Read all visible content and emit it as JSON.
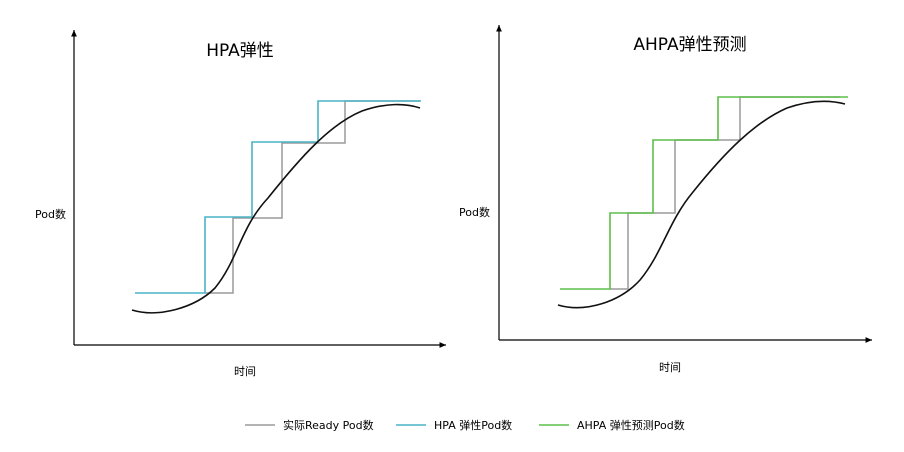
{
  "left_panel": {
    "title": "HPA弹性",
    "ylabel": "Pod数",
    "xlabel": "时间",
    "series_color": "#4ab4c8"
  },
  "right_panel": {
    "title": "AHPA弹性预测",
    "ylabel": "Pod数",
    "xlabel": "时间",
    "series_color": "#5cbf4a"
  },
  "legend": {
    "ready": {
      "label": "实际Ready Pod数",
      "color": "#9a9a9a"
    },
    "hpa": {
      "label": "HPA 弹性Pod数",
      "color": "#4ab4c8"
    },
    "ahpa": {
      "label": "AHPA 弹性预测Pod数",
      "color": "#5cbf4a"
    }
  }
}
